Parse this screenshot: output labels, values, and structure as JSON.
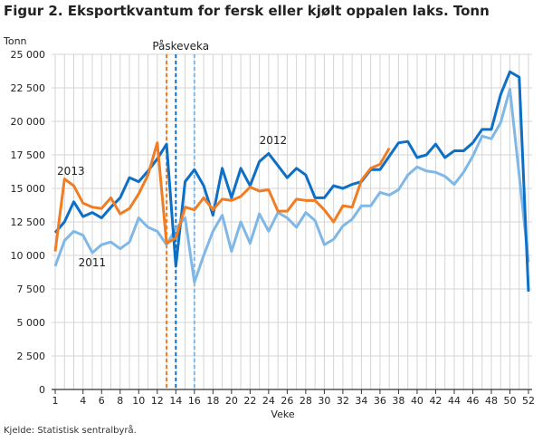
{
  "title": "Figur 2. Eksportkvantum for fersk eller kjølt oppalen laks. Tonn",
  "source": "Kjelde: Statistisk sentralbyrå.",
  "chart_data": {
    "type": "line",
    "title": "Figur 2. Eksportkvantum for fersk eller kjølt oppalen laks. Tonn",
    "xlabel": "Veke",
    "ylabel": "Tonn",
    "xlim": [
      1,
      52
    ],
    "ylim": [
      0,
      25000
    ],
    "xticks": [
      1,
      4,
      6,
      8,
      10,
      12,
      14,
      16,
      18,
      20,
      22,
      24,
      26,
      28,
      30,
      32,
      34,
      36,
      38,
      40,
      42,
      44,
      46,
      48,
      50,
      52
    ],
    "yticks": [
      0,
      2500,
      5000,
      7500,
      10000,
      12500,
      15000,
      17500,
      20000,
      22500,
      25000
    ],
    "ytick_labels": [
      "0",
      "2 500",
      "5 000",
      "7 500",
      "10 000",
      "12 500",
      "15 000",
      "17 500",
      "20 000",
      "22 500",
      "25 000"
    ],
    "grid": true,
    "annotation": "Påskeveka",
    "easter_weeks": [
      {
        "week": 13,
        "color": "#f07d23"
      },
      {
        "week": 14,
        "color": "#0d6fc6"
      },
      {
        "week": 16,
        "color": "#7fb8e6"
      }
    ],
    "series": [
      {
        "name": "2011",
        "color": "#7fb8e6",
        "values": [
          9200,
          11100,
          11800,
          11500,
          10200,
          10800,
          11000,
          10500,
          11000,
          12800,
          12100,
          11800,
          10800,
          12000,
          12800,
          8000,
          10000,
          11800,
          13000,
          10300,
          12500,
          10900,
          13100,
          11800,
          13200,
          12800,
          12100,
          13200,
          12600,
          10800,
          11200,
          12200,
          12700,
          13700,
          13700,
          14700,
          14500,
          14900,
          16000,
          16600,
          16300,
          16200,
          15900,
          15300,
          16200,
          17400,
          18900,
          18700,
          19900,
          22400,
          16000,
          9500
        ]
      },
      {
        "name": "2012",
        "color": "#0d6fc6",
        "values": [
          11700,
          12500,
          14000,
          12900,
          13200,
          12800,
          13600,
          14300,
          15800,
          15500,
          16300,
          17200,
          18300,
          9200,
          15500,
          16400,
          15200,
          13000,
          16500,
          14300,
          16500,
          15200,
          17000,
          17600,
          16700,
          15800,
          16500,
          16000,
          14300,
          14300,
          15200,
          15000,
          15300,
          15500,
          16400,
          16400,
          17400,
          18400,
          18500,
          17300,
          17500,
          18300,
          17300,
          17800,
          17800,
          18400,
          19400,
          19400,
          22000,
          23700,
          23300,
          7300
        ]
      },
      {
        "name": "2013",
        "color": "#f07d23",
        "values": [
          10300,
          15700,
          15200,
          13900,
          13600,
          13500,
          14300,
          13100,
          13500,
          14600,
          16000,
          18400,
          10900,
          11300,
          13600,
          13400,
          14300,
          13400,
          14200,
          14100,
          14400,
          15100,
          14800,
          14900,
          13300,
          13300,
          14200,
          14100,
          14100,
          13400,
          12500,
          13700,
          13600,
          15600,
          16500,
          16800,
          18000
        ]
      }
    ],
    "series_labels": [
      {
        "name": "2013",
        "week": 1.2,
        "value": 16000
      },
      {
        "name": "2011",
        "week": 3.5,
        "value": 9200
      },
      {
        "name": "2012",
        "week": 23,
        "value": 18300
      }
    ]
  }
}
